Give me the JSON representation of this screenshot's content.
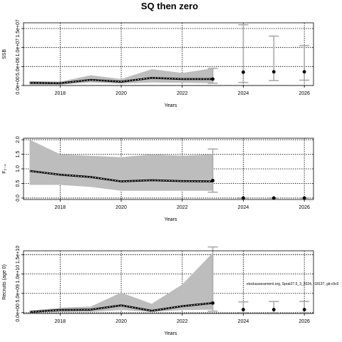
{
  "title": "SQ then zero",
  "annotation": "stockassessment.org, Sprat27.5_3_2024, r18137, git:c9c6",
  "chart_data": [
    {
      "type": "line",
      "ylabel": "SSB",
      "xlabel": "Years",
      "ylim": [
        0,
        16500000
      ],
      "xlim": [
        2016.8,
        2026.3
      ],
      "xticks": [
        2018,
        2020,
        2022,
        2024,
        2026
      ],
      "yticks": [
        0,
        5000000,
        10000000,
        15000000
      ],
      "ytick_labels": [
        "0.0e+00",
        "5.0e+06",
        "1.0e+07",
        "1.5e+07"
      ],
      "grid": true,
      "historical": {
        "x": [
          2017,
          2018,
          2019,
          2020,
          2021,
          2022,
          2023
        ],
        "est": [
          700000,
          600000,
          1500000,
          1000000,
          2000000,
          1700000,
          1700000
        ],
        "lo": [
          200000,
          200000,
          800000,
          500000,
          800000,
          700000,
          600000
        ],
        "hi": [
          1200000,
          1000000,
          2700000,
          1700000,
          4300000,
          3300000,
          4500000
        ]
      },
      "forecast": {
        "x": [
          2023,
          2024,
          2025,
          2026
        ],
        "median": [
          1700000,
          3500000,
          3600000,
          3600000
        ],
        "lo": [
          600000,
          800000,
          1300000,
          1400000
        ],
        "hi": [
          4500000,
          16000000,
          13000000,
          10500000
        ]
      }
    },
    {
      "type": "line",
      "ylabel": "F₂₋₄",
      "xlabel": "Years",
      "ylim": [
        -0.05,
        2.05
      ],
      "xlim": [
        2016.8,
        2026.3
      ],
      "xticks": [
        2018,
        2020,
        2022,
        2024,
        2026
      ],
      "yticks": [
        0,
        0.5,
        1.0,
        1.5,
        2.0
      ],
      "ytick_labels": [
        "0.0",
        "0.5",
        "1.0",
        "1.5",
        "2.0"
      ],
      "grid": true,
      "historical": {
        "x": [
          2017,
          2018,
          2019,
          2020,
          2021,
          2022,
          2023
        ],
        "est": [
          0.93,
          0.8,
          0.72,
          0.57,
          0.61,
          0.58,
          0.57
        ],
        "lo": [
          0.45,
          0.45,
          0.38,
          0.25,
          0.25,
          0.25,
          0.25
        ],
        "hi": [
          2.0,
          1.5,
          1.45,
          1.4,
          1.5,
          1.45,
          1.5
        ]
      },
      "forecast": {
        "x": [
          2023,
          2024,
          2025,
          2026
        ],
        "median": [
          0.6,
          0.0,
          0.0,
          0.0
        ],
        "lo": [
          0.2,
          0.0,
          0.0,
          0.0
        ],
        "hi": [
          1.68,
          0.0,
          0.0,
          0.0
        ]
      }
    },
    {
      "type": "line",
      "ylabel": "Recruits (age 0)",
      "xlabel": "Years",
      "ylim": [
        -200000000,
        16000000000
      ],
      "xlim": [
        2016.8,
        2026.3
      ],
      "xticks": [
        2018,
        2020,
        2022,
        2024,
        2026
      ],
      "yticks": [
        0,
        5000000000,
        10000000000,
        15000000000
      ],
      "ytick_labels": [
        "0.0e+00",
        "5.0e+09",
        "1.0e+10",
        "1.5e+10"
      ],
      "grid": true,
      "historical": {
        "x": [
          2017,
          2018,
          2019,
          2020,
          2021,
          2022,
          2023
        ],
        "est": [
          200000000,
          700000000,
          800000000,
          1900000000,
          500000000,
          1700000000,
          2500000000
        ],
        "lo": [
          100000000,
          200000000,
          200000000,
          700000000,
          200000000,
          700000000,
          800000000
        ],
        "hi": [
          500000000,
          1300000000,
          1600000000,
          5200000000,
          2300000000,
          7300000000,
          15500000000
        ]
      },
      "forecast": {
        "x": [
          2023,
          2024,
          2025,
          2026
        ],
        "median": [
          2500000000,
          800000000,
          800000000,
          800000000
        ],
        "lo": [
          400000000,
          0,
          0,
          0
        ],
        "hi": [
          17000000000,
          2800000000,
          2900000000,
          2900000000
        ]
      }
    }
  ]
}
